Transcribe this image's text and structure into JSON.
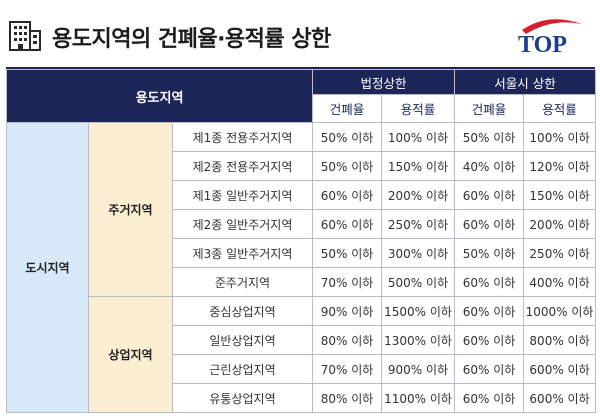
{
  "header": {
    "title": "용도지역의 건폐율·용적률 상한",
    "logo_text": "TOP",
    "icon": "building-icon"
  },
  "table": {
    "zone_header": "용도지역",
    "group_legal": "법정상한",
    "group_seoul": "서울시 상한",
    "col_coverage": "건폐율",
    "col_far": "용적률",
    "city": "도시지역",
    "categories": [
      {
        "name": "주거지역",
        "rows": [
          {
            "zone": "제1종 전용주거지역",
            "legal_cov": "50% 이하",
            "legal_far": "100% 이하",
            "seoul_cov": "50% 이하",
            "seoul_far": "100% 이하"
          },
          {
            "zone": "제2종 전용주거지역",
            "legal_cov": "50% 이하",
            "legal_far": "150% 이하",
            "seoul_cov": "40% 이하",
            "seoul_far": "120% 이하"
          },
          {
            "zone": "제1종 일반주거지역",
            "legal_cov": "60% 이하",
            "legal_far": "200% 이하",
            "seoul_cov": "60% 이하",
            "seoul_far": "150% 이하"
          },
          {
            "zone": "제2종 일반주거지역",
            "legal_cov": "60% 이하",
            "legal_far": "250% 이하",
            "seoul_cov": "60% 이하",
            "seoul_far": "200% 이하"
          },
          {
            "zone": "제3종 일반주거지역",
            "legal_cov": "50% 이하",
            "legal_far": "300% 이하",
            "seoul_cov": "50% 이하",
            "seoul_far": "250% 이하"
          },
          {
            "zone": "준주거지역",
            "legal_cov": "70% 이하",
            "legal_far": "500% 이하",
            "seoul_cov": "60% 이하",
            "seoul_far": "400% 이하"
          }
        ]
      },
      {
        "name": "상업지역",
        "rows": [
          {
            "zone": "중심상업지역",
            "legal_cov": "90% 이하",
            "legal_far": "1500% 이하",
            "seoul_cov": "60% 이하",
            "seoul_far": "1000% 이하"
          },
          {
            "zone": "일반상업지역",
            "legal_cov": "80% 이하",
            "legal_far": "1300% 이하",
            "seoul_cov": "60% 이하",
            "seoul_far": "800% 이하"
          },
          {
            "zone": "근린상업지역",
            "legal_cov": "70% 이하",
            "legal_far": "900% 이하",
            "seoul_cov": "60% 이하",
            "seoul_far": "600% 이하"
          },
          {
            "zone": "유통상업지역",
            "legal_cov": "80% 이하",
            "legal_far": "1100% 이하",
            "seoul_cov": "60% 이하",
            "seoul_far": "600% 이하"
          }
        ]
      }
    ]
  },
  "colors": {
    "navy": "#1d2658",
    "city_bg": "#d7e8f6",
    "category_bg": "#fbeed2",
    "logo_red": "#d4202c",
    "logo_blue": "#1d3c8f"
  }
}
